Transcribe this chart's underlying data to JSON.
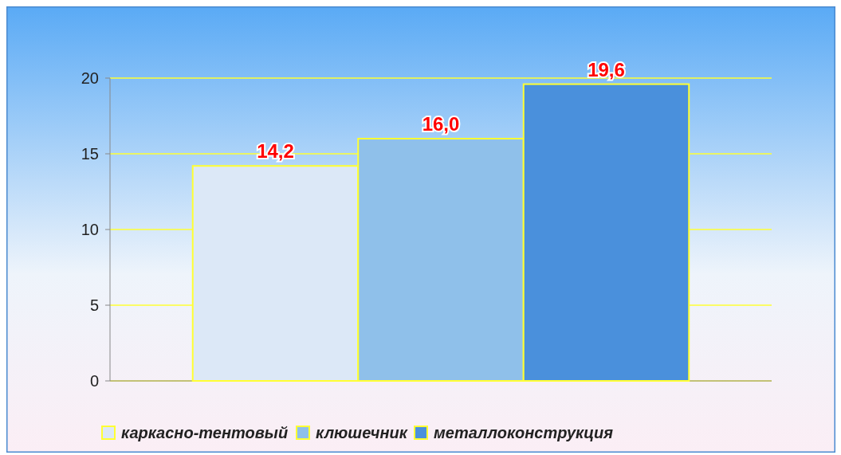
{
  "chart_data": {
    "type": "bar",
    "categories": [
      null
    ],
    "series": [
      {
        "name": "каркасно-тентовый",
        "color": "#dce8f7",
        "values": [
          14.2
        ]
      },
      {
        "name": "клюшечник",
        "color": "#8fc0ea",
        "values": [
          16.0
        ]
      },
      {
        "name": "металлоконструкция",
        "color": "#4a90dc",
        "values": [
          19.6
        ]
      }
    ],
    "value_labels": [
      "14,2",
      "16,0",
      "19,6"
    ],
    "ylim": [
      0,
      20
    ],
    "yticks": [
      0,
      5,
      10,
      15,
      20
    ],
    "grid": "y",
    "legend": "bottom"
  }
}
